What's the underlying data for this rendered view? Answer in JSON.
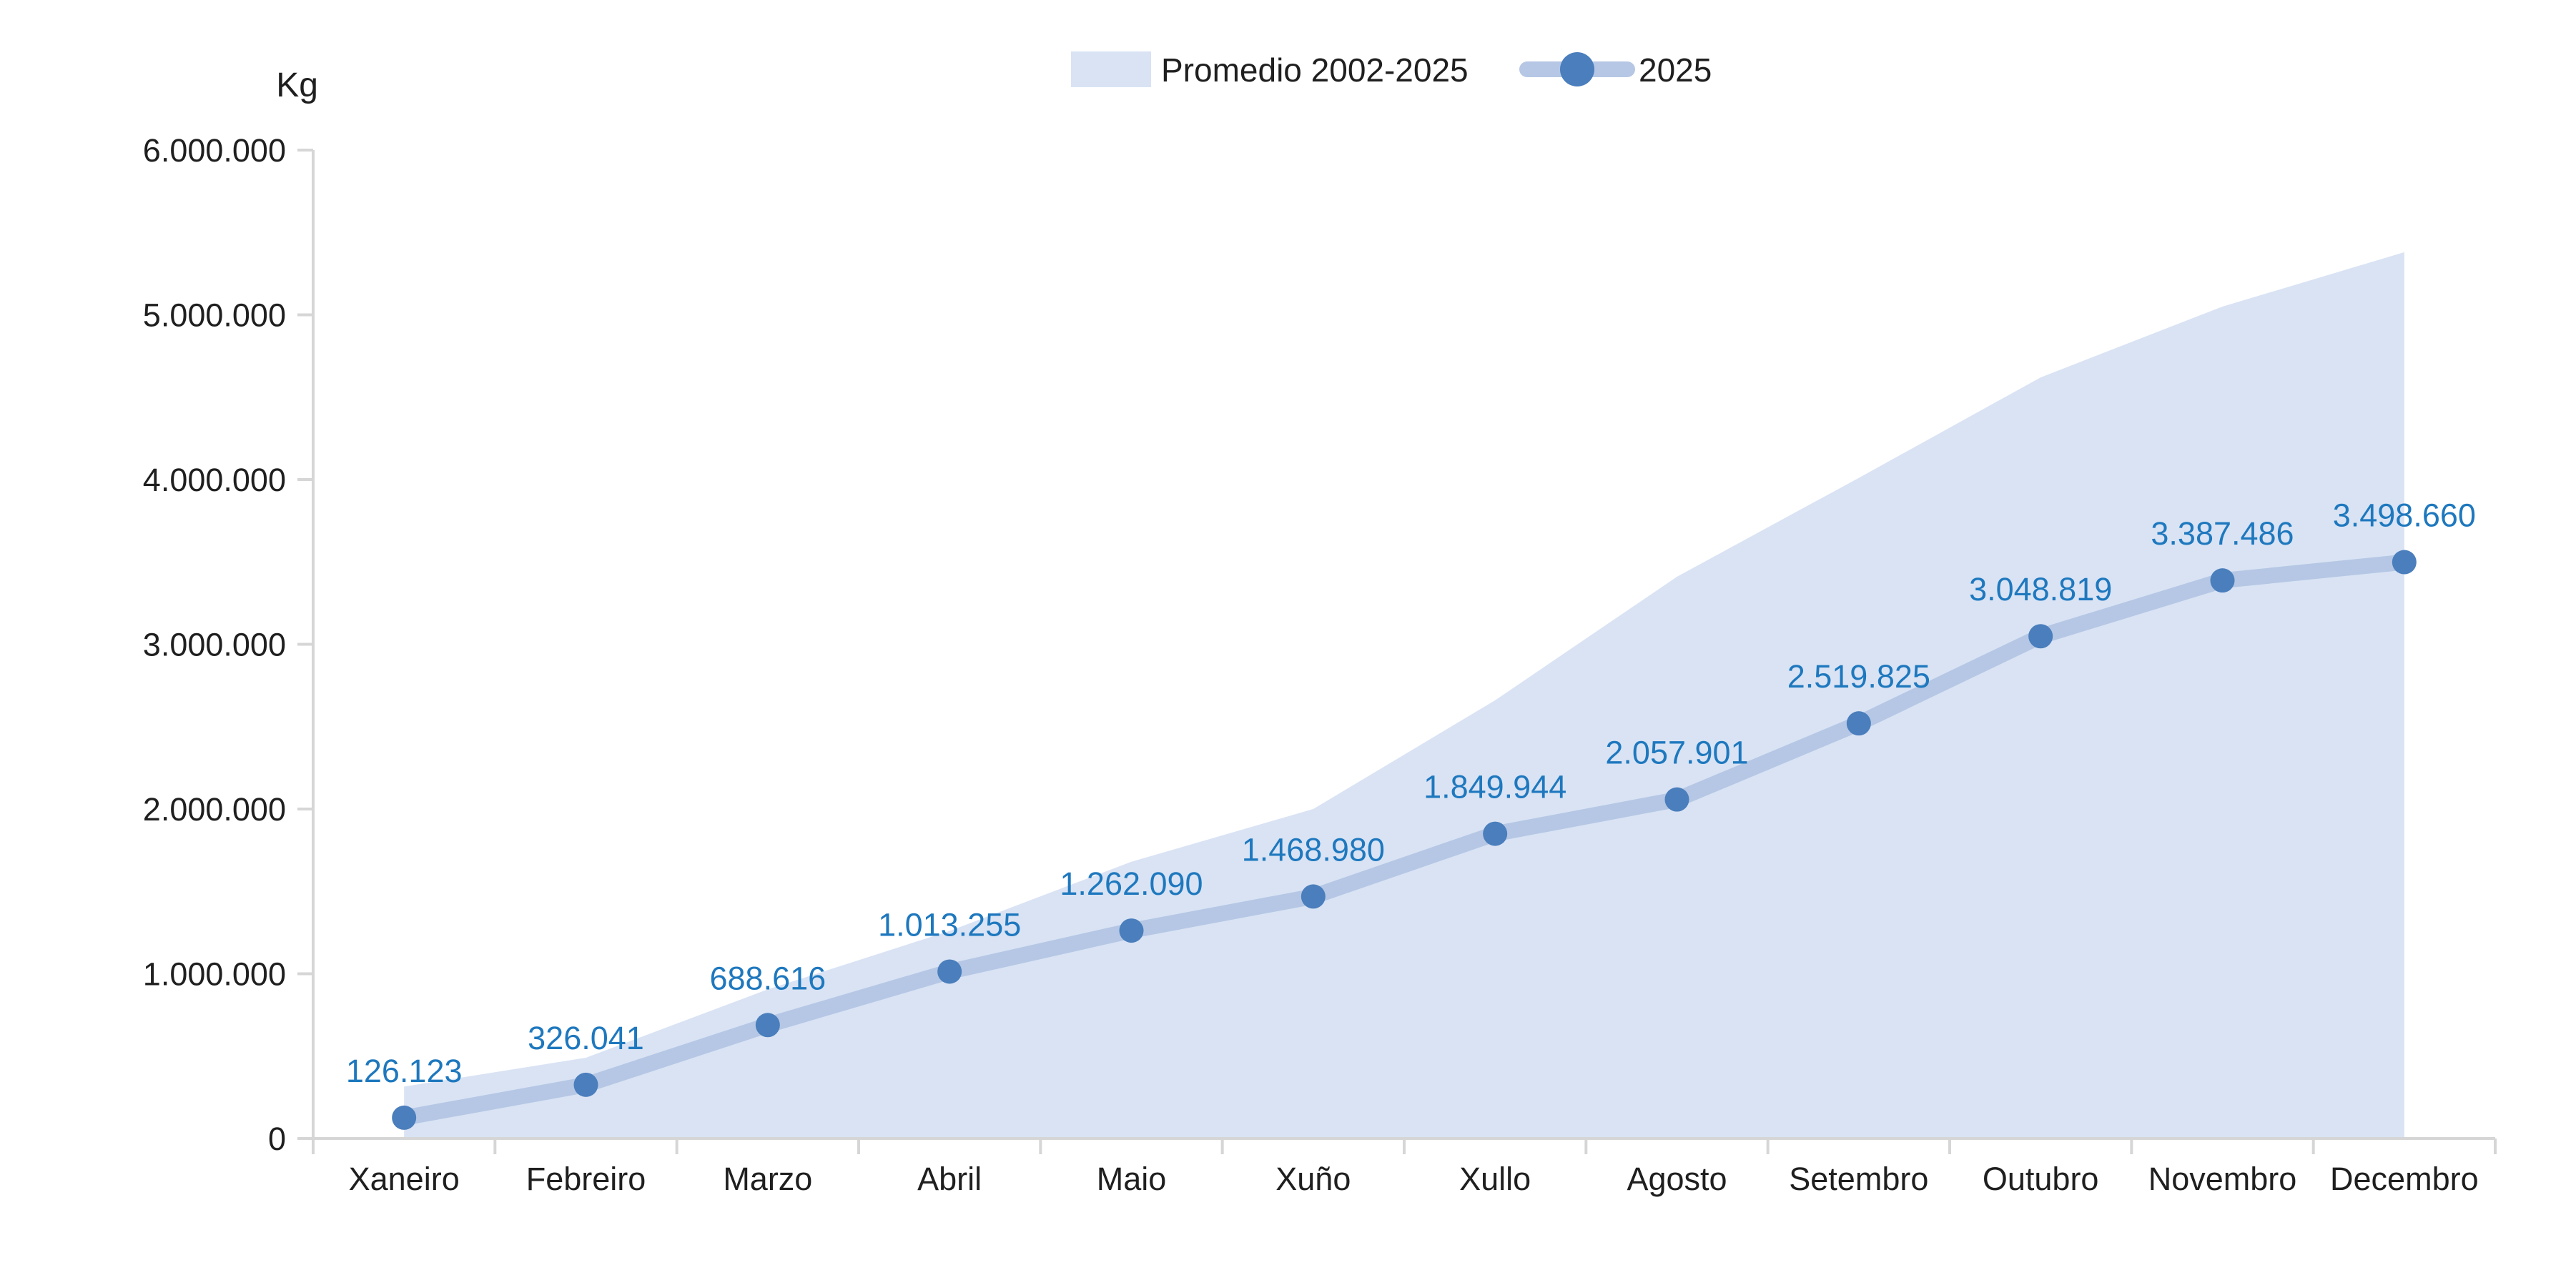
{
  "chart_data": {
    "type": "line",
    "unit_label": "Kg",
    "categories": [
      "Xaneiro",
      "Febreiro",
      "Marzo",
      "Abril",
      "Maio",
      "Xuño",
      "Xullo",
      "Agosto",
      "Setembro",
      "Outubro",
      "Novembro",
      "Decembro"
    ],
    "series": [
      {
        "name": "Promedio 2002-2025",
        "type": "area",
        "color": "#d9e3f4",
        "values": [
          315000,
          490000,
          905000,
          1260000,
          1680000,
          2000000,
          2660000,
          3410000,
          4010000,
          4620000,
          5050000,
          5380000
        ]
      },
      {
        "name": "2025",
        "type": "line",
        "color": "#b5c7e4",
        "marker_color": "#4a7ebc",
        "label_color": "#1e78be",
        "values": [
          126123,
          326041,
          688616,
          1013255,
          1262090,
          1468980,
          1849944,
          2057901,
          2519825,
          3048819,
          3387486,
          3498660
        ],
        "data_labels": [
          "126.123",
          "326.041",
          "688.616",
          "1.013.255",
          "1.262.090",
          "1.468.980",
          "1.849.944",
          "2.057.901",
          "2.519.825",
          "3.048.819",
          "3.387.486",
          "3.498.660"
        ]
      }
    ],
    "y_axis": {
      "min": 0,
      "max": 6000000,
      "step": 1000000,
      "tick_labels": [
        "6.000.000",
        "5.000.000",
        "4.000.000",
        "3.000.000",
        "2.000.000",
        "1.000.000",
        "0"
      ]
    },
    "x_axis": {
      "tick_marks": "between-categories"
    },
    "legend_position": "top-center",
    "grid": false,
    "colors": {
      "axis": "#d6d6d6",
      "text": "#1f1f1f",
      "background": "#ffffff"
    }
  }
}
